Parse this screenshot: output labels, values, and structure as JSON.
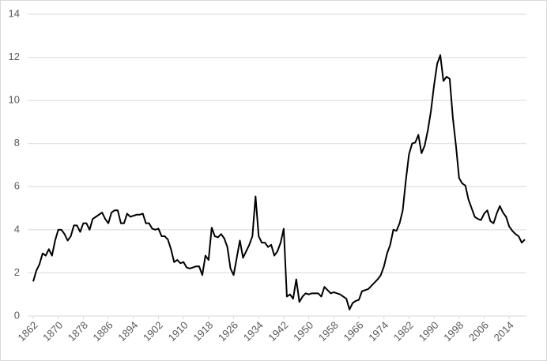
{
  "chart_data": {
    "type": "line",
    "x": [
      1862,
      1863,
      1864,
      1865,
      1866,
      1867,
      1868,
      1869,
      1870,
      1871,
      1872,
      1873,
      1874,
      1875,
      1876,
      1877,
      1878,
      1879,
      1880,
      1881,
      1882,
      1883,
      1884,
      1885,
      1886,
      1887,
      1888,
      1889,
      1890,
      1891,
      1892,
      1893,
      1894,
      1895,
      1896,
      1897,
      1898,
      1899,
      1900,
      1901,
      1902,
      1903,
      1904,
      1905,
      1906,
      1907,
      1908,
      1909,
      1910,
      1911,
      1912,
      1913,
      1914,
      1915,
      1916,
      1917,
      1918,
      1919,
      1920,
      1921,
      1922,
      1923,
      1924,
      1925,
      1926,
      1927,
      1928,
      1929,
      1930,
      1931,
      1932,
      1933,
      1934,
      1935,
      1936,
      1937,
      1938,
      1939,
      1940,
      1941,
      1942,
      1943,
      1944,
      1945,
      1946,
      1947,
      1948,
      1949,
      1950,
      1951,
      1952,
      1953,
      1954,
      1955,
      1956,
      1957,
      1958,
      1959,
      1960,
      1961,
      1962,
      1963,
      1964,
      1965,
      1966,
      1967,
      1968,
      1969,
      1970,
      1971,
      1972,
      1973,
      1974,
      1975,
      1976,
      1977,
      1978,
      1979,
      1980,
      1981,
      1982,
      1983,
      1984,
      1985,
      1986,
      1987,
      1988,
      1989,
      1990,
      1991,
      1992,
      1993,
      1994,
      1995,
      1996,
      1997,
      1998,
      1999,
      2000,
      2001,
      2002,
      2003,
      2004,
      2005,
      2006,
      2007,
      2008,
      2009,
      2010,
      2011,
      2012,
      2013,
      2014,
      2015,
      2016,
      2017,
      2018,
      2019
    ],
    "values": [
      1.6,
      2.1,
      2.4,
      2.9,
      2.8,
      3.1,
      2.8,
      3.5,
      4.0,
      4.0,
      3.8,
      3.5,
      3.7,
      4.2,
      4.2,
      3.9,
      4.3,
      4.3,
      4.0,
      4.5,
      4.6,
      4.7,
      4.8,
      4.5,
      4.3,
      4.8,
      4.9,
      4.9,
      4.3,
      4.3,
      4.75,
      4.6,
      4.65,
      4.7,
      4.7,
      4.75,
      4.3,
      4.3,
      4.05,
      4.0,
      4.05,
      3.7,
      3.7,
      3.55,
      3.1,
      2.5,
      2.6,
      2.45,
      2.5,
      2.25,
      2.2,
      2.25,
      2.3,
      2.3,
      1.9,
      2.8,
      2.6,
      4.1,
      3.7,
      3.65,
      3.8,
      3.6,
      3.2,
      2.2,
      1.9,
      2.7,
      3.5,
      2.7,
      3.0,
      3.3,
      3.7,
      5.55,
      3.7,
      3.4,
      3.4,
      3.2,
      3.3,
      2.8,
      3.0,
      3.4,
      4.05,
      0.9,
      1.0,
      0.8,
      1.7,
      0.65,
      0.9,
      1.05,
      1.0,
      1.05,
      1.05,
      1.05,
      0.9,
      1.35,
      1.2,
      1.05,
      1.1,
      1.05,
      1.0,
      0.9,
      0.8,
      0.3,
      0.6,
      0.7,
      0.75,
      1.15,
      1.2,
      1.25,
      1.4,
      1.55,
      1.7,
      1.9,
      2.3,
      2.9,
      3.3,
      4.0,
      3.95,
      4.3,
      4.9,
      6.3,
      7.5,
      8.0,
      8.05,
      8.4,
      7.55,
      7.9,
      8.6,
      9.5,
      10.7,
      11.7,
      12.1,
      10.9,
      11.1,
      11.0,
      9.2,
      7.9,
      6.4,
      6.15,
      6.05,
      5.4,
      5.0,
      4.6,
      4.5,
      4.45,
      4.75,
      4.9,
      4.4,
      4.3,
      4.75,
      5.1,
      4.8,
      4.6,
      4.15,
      3.95,
      3.8,
      3.7,
      3.4,
      3.55
    ],
    "color": "#000000",
    "xlim": [
      1862,
      2019
    ],
    "xticks": [
      1862,
      1870,
      1878,
      1886,
      1894,
      1902,
      1910,
      1918,
      1926,
      1934,
      1942,
      1950,
      1958,
      1966,
      1974,
      1982,
      1990,
      1998,
      2006,
      2014
    ],
    "ylim": [
      0,
      14
    ],
    "yticks": [
      0,
      2,
      4,
      6,
      8,
      10,
      12,
      14
    ],
    "grid": true
  }
}
